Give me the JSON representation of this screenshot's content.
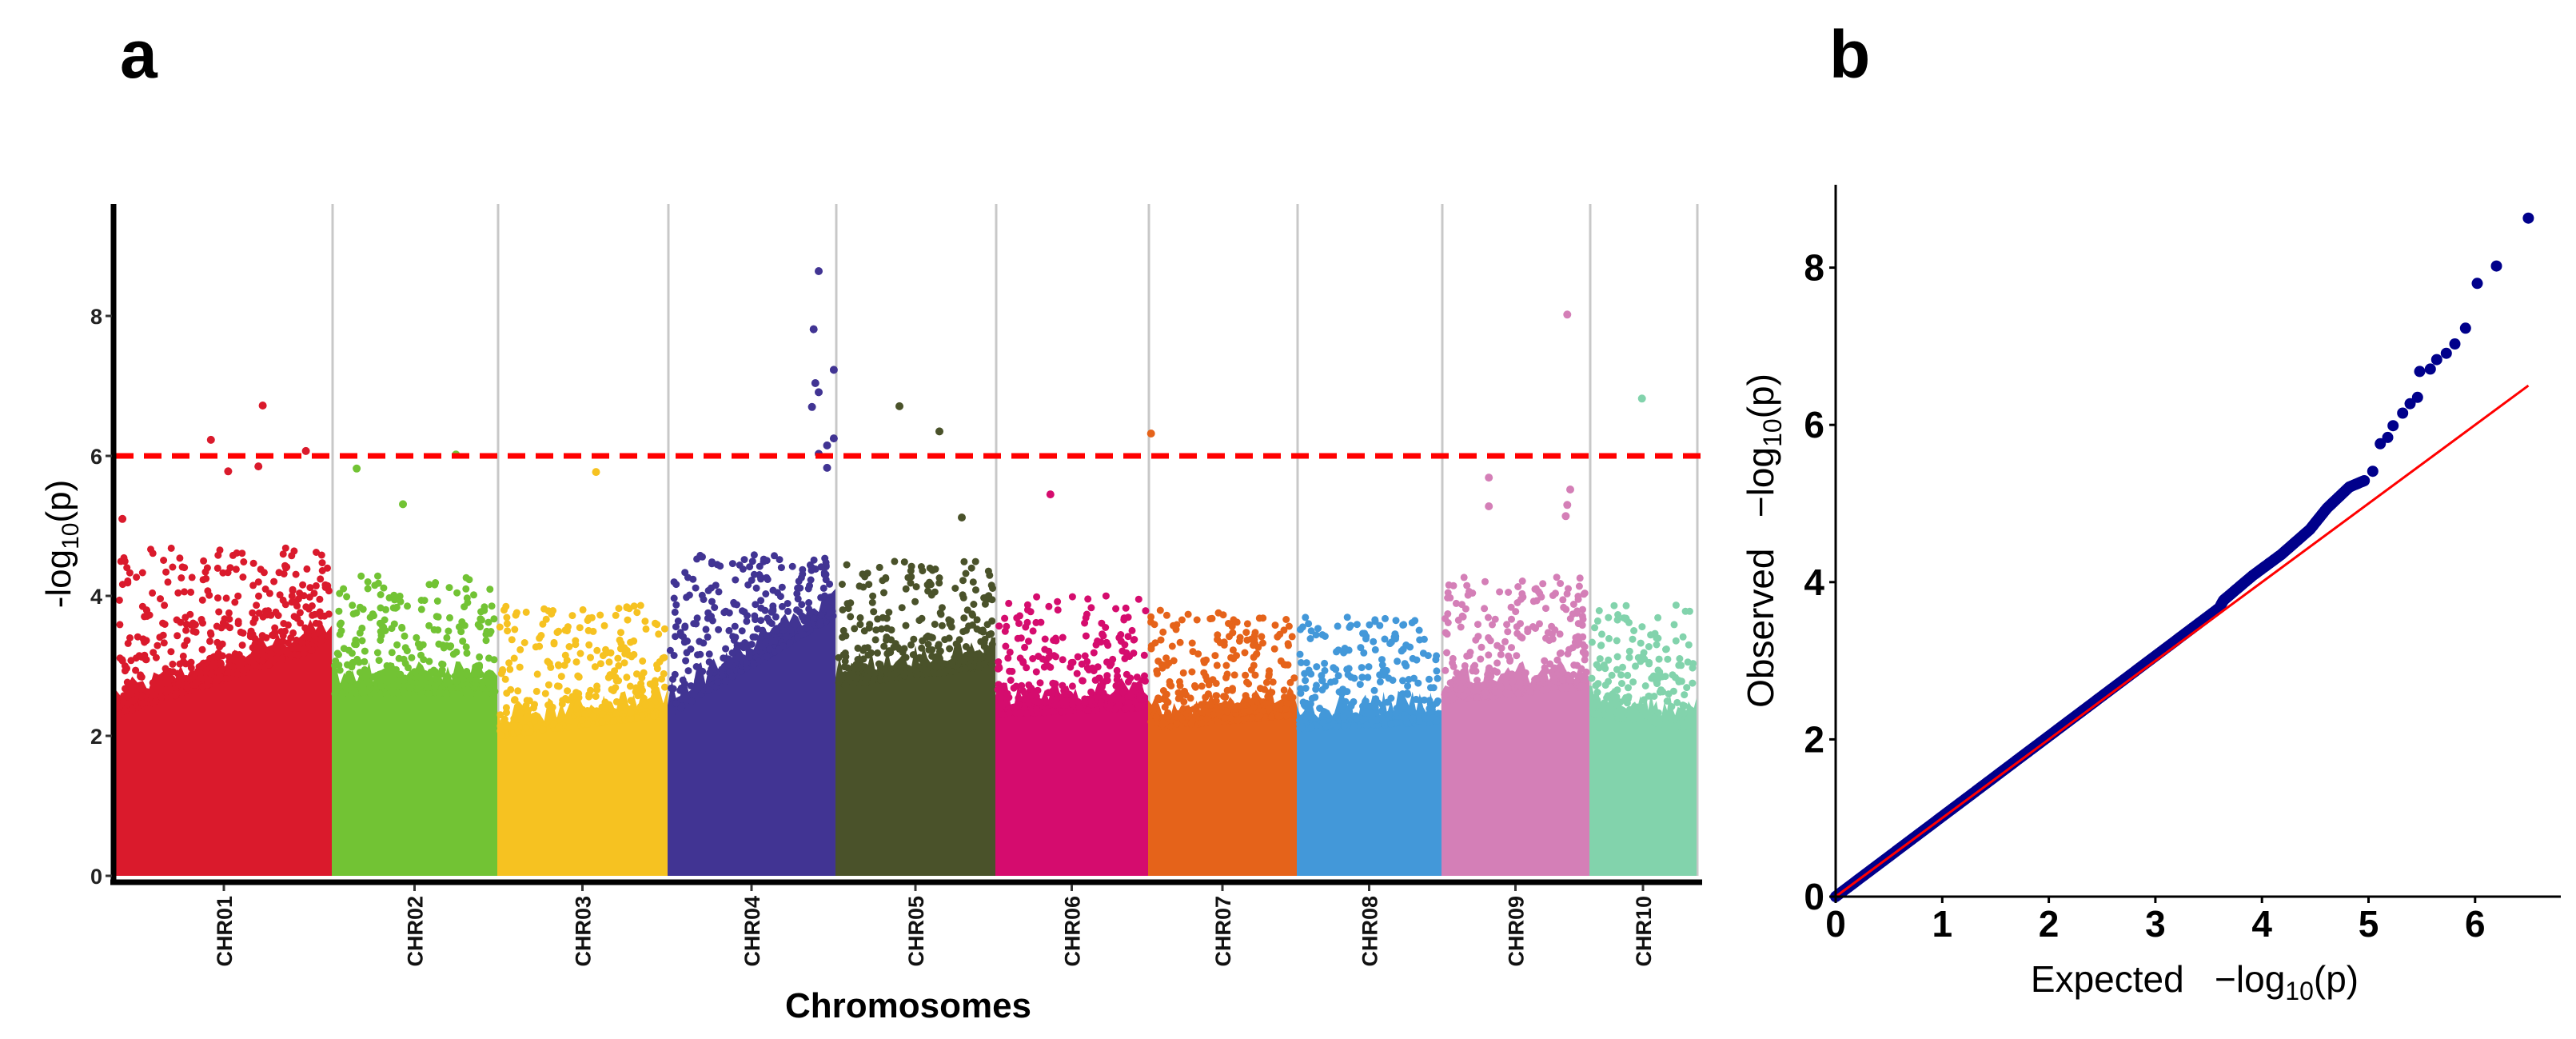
{
  "chart_data": [
    {
      "type": "scatter",
      "subtype": "manhattan",
      "panel_label": "a",
      "xlabel": "Chromosomes",
      "ylabel": {
        "prefix": "-log",
        "sub": "10",
        "suffix": "(p)"
      },
      "ylim": [
        0,
        9.5
      ],
      "yticks": [
        0,
        2,
        4,
        6,
        8
      ],
      "threshold": 6,
      "threshold_color": "#FF0000",
      "separator_color": "#C8C8C8",
      "chromosomes": [
        {
          "name": "CHR01",
          "color": "#DA1A2C",
          "relative_length": 270,
          "dense_level": [
            2.6,
            3.6
          ],
          "cloud_max": 4.7
        },
        {
          "name": "CHR02",
          "color": "#72C334",
          "relative_length": 207,
          "dense_level": [
            2.9,
            2.9
          ],
          "cloud_max": 4.3
        },
        {
          "name": "CHR03",
          "color": "#F6C221",
          "relative_length": 213,
          "dense_level": [
            2.3,
            2.6
          ],
          "cloud_max": 3.9
        },
        {
          "name": "CHR04",
          "color": "#413493",
          "relative_length": 210,
          "dense_level": [
            2.6,
            4.0
          ],
          "cloud_max": 4.6
        },
        {
          "name": "CHR05",
          "color": "#4A522A",
          "relative_length": 200,
          "dense_level": [
            3.0,
            3.3
          ],
          "cloud_max": 4.5
        },
        {
          "name": "CHR06",
          "color": "#D50C6E",
          "relative_length": 191,
          "dense_level": [
            2.6,
            2.7
          ],
          "cloud_max": 4.0
        },
        {
          "name": "CHR07",
          "color": "#E5631A",
          "relative_length": 186,
          "dense_level": [
            2.4,
            2.6
          ],
          "cloud_max": 3.8
        },
        {
          "name": "CHR08",
          "color": "#4398D9",
          "relative_length": 181,
          "dense_level": [
            2.4,
            2.5
          ],
          "cloud_max": 3.7
        },
        {
          "name": "CHR09",
          "color": "#D47FB7",
          "relative_length": 185,
          "dense_level": [
            2.8,
            3.0
          ],
          "cloud_max": 4.3
        },
        {
          "name": "CHR10",
          "color": "#82D3AC",
          "relative_length": 134,
          "dense_level": [
            2.6,
            2.4
          ],
          "cloud_max": 3.9
        }
      ],
      "notable_points": [
        {
          "chr": 0,
          "pos": 0.03,
          "y": 5.1
        },
        {
          "chr": 0,
          "pos": 0.44,
          "y": 6.23
        },
        {
          "chr": 0,
          "pos": 0.68,
          "y": 6.72
        },
        {
          "chr": 0,
          "pos": 0.52,
          "y": 5.78
        },
        {
          "chr": 0,
          "pos": 0.66,
          "y": 5.85
        },
        {
          "chr": 0,
          "pos": 0.88,
          "y": 6.07
        },
        {
          "chr": 1,
          "pos": 0.15,
          "y": 5.82
        },
        {
          "chr": 1,
          "pos": 0.43,
          "y": 5.31
        },
        {
          "chr": 1,
          "pos": 0.75,
          "y": 6.02
        },
        {
          "chr": 2,
          "pos": 0.58,
          "y": 5.77
        },
        {
          "chr": 3,
          "pos": 0.9,
          "y": 8.64
        },
        {
          "chr": 3,
          "pos": 0.87,
          "y": 7.81
        },
        {
          "chr": 3,
          "pos": 0.99,
          "y": 7.23
        },
        {
          "chr": 3,
          "pos": 0.88,
          "y": 7.04
        },
        {
          "chr": 3,
          "pos": 0.9,
          "y": 6.91
        },
        {
          "chr": 3,
          "pos": 0.86,
          "y": 6.7
        },
        {
          "chr": 3,
          "pos": 0.99,
          "y": 6.25
        },
        {
          "chr": 3,
          "pos": 0.95,
          "y": 6.15
        },
        {
          "chr": 3,
          "pos": 0.9,
          "y": 6.03
        },
        {
          "chr": 3,
          "pos": 0.95,
          "y": 5.83
        },
        {
          "chr": 4,
          "pos": 0.4,
          "y": 6.71
        },
        {
          "chr": 4,
          "pos": 0.65,
          "y": 6.35
        },
        {
          "chr": 4,
          "pos": 0.79,
          "y": 5.12
        },
        {
          "chr": 5,
          "pos": 0.36,
          "y": 5.45
        },
        {
          "chr": 6,
          "pos": 0.02,
          "y": 6.32
        },
        {
          "chr": 8,
          "pos": 0.85,
          "y": 8.02
        },
        {
          "chr": 8,
          "pos": 0.32,
          "y": 5.69
        },
        {
          "chr": 8,
          "pos": 0.87,
          "y": 5.52
        },
        {
          "chr": 8,
          "pos": 0.32,
          "y": 5.28
        },
        {
          "chr": 8,
          "pos": 0.85,
          "y": 5.3
        },
        {
          "chr": 8,
          "pos": 0.84,
          "y": 5.14
        },
        {
          "chr": 9,
          "pos": 0.49,
          "y": 6.82
        }
      ]
    },
    {
      "type": "scatter",
      "subtype": "qq",
      "panel_label": "b",
      "xlabel": {
        "prefix": "Expected   −log",
        "sub": "10",
        "suffix": "(p)"
      },
      "ylabel": {
        "prefix": "Observed   −log",
        "sub": "10",
        "suffix": "(p)"
      },
      "xlim": [
        0,
        6.8
      ],
      "ylim": [
        0,
        9.0
      ],
      "xticks": [
        0,
        1,
        2,
        3,
        4,
        5,
        6
      ],
      "yticks": [
        0,
        2,
        4,
        6,
        8
      ],
      "point_color": "#00008B",
      "line_color": "#FF0000",
      "reference_line": [
        [
          0,
          0
        ],
        [
          6.5,
          6.5
        ]
      ],
      "dense_diagonal": {
        "range": [
          0,
          3.6
        ],
        "slope": 1.02
      },
      "tail_points": [
        [
          3.64,
          3.77
        ],
        [
          3.91,
          4.08
        ],
        [
          4.18,
          4.35
        ],
        [
          4.45,
          4.67
        ],
        [
          4.61,
          4.94
        ],
        [
          4.82,
          5.21
        ],
        [
          4.96,
          5.29
        ],
        [
          5.04,
          5.41
        ],
        [
          5.11,
          5.76
        ],
        [
          5.18,
          5.84
        ],
        [
          5.23,
          5.99
        ],
        [
          5.32,
          6.15
        ],
        [
          5.39,
          6.27
        ],
        [
          5.46,
          6.35
        ],
        [
          5.48,
          6.68
        ],
        [
          5.58,
          6.71
        ],
        [
          5.64,
          6.83
        ],
        [
          5.73,
          6.91
        ],
        [
          5.81,
          7.03
        ],
        [
          5.91,
          7.23
        ],
        [
          6.02,
          7.8
        ],
        [
          6.2,
          8.02
        ],
        [
          6.5,
          8.63
        ]
      ]
    }
  ]
}
